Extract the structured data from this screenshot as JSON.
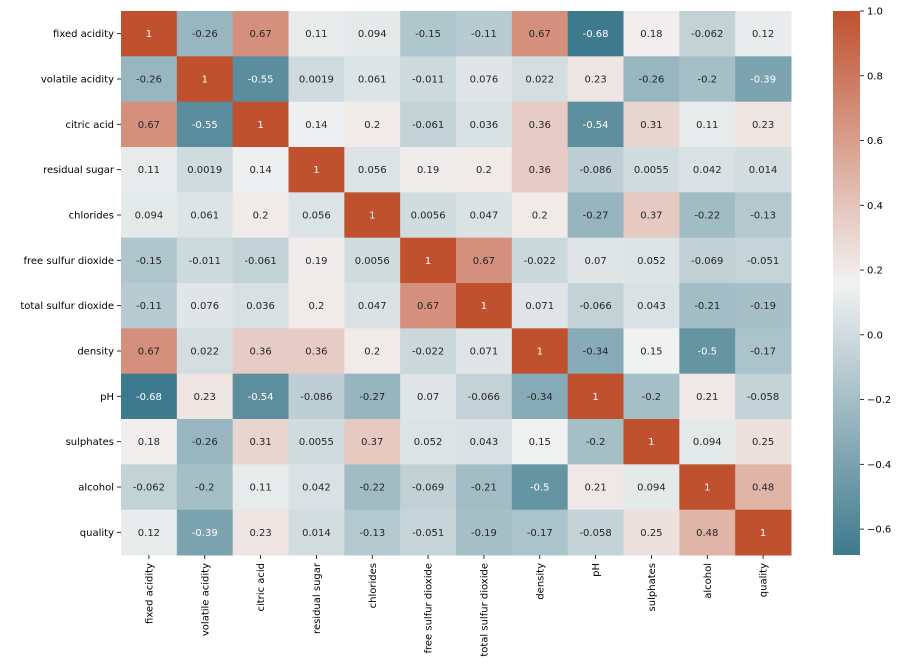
{
  "chart_data": {
    "type": "heatmap",
    "title": "",
    "xlabel": "",
    "ylabel": "",
    "labels": [
      "fixed acidity",
      "volatile acidity",
      "citric acid",
      "residual sugar",
      "chlorides",
      "free sulfur dioxide",
      "total sulfur dioxide",
      "density",
      "pH",
      "sulphates",
      "alcohol",
      "quality"
    ],
    "matrix": [
      [
        "1",
        "-0.26",
        "0.67",
        "0.11",
        "0.094",
        "-0.15",
        "-0.11",
        "0.67",
        "-0.68",
        "0.18",
        "-0.062",
        "0.12"
      ],
      [
        "-0.26",
        "1",
        "-0.55",
        "0.0019",
        "0.061",
        "-0.011",
        "0.076",
        "0.022",
        "0.23",
        "-0.26",
        "-0.2",
        "-0.39"
      ],
      [
        "0.67",
        "-0.55",
        "1",
        "0.14",
        "0.2",
        "-0.061",
        "0.036",
        "0.36",
        "-0.54",
        "0.31",
        "0.11",
        "0.23"
      ],
      [
        "0.11",
        "0.0019",
        "0.14",
        "1",
        "0.056",
        "0.19",
        "0.2",
        "0.36",
        "-0.086",
        "0.0055",
        "0.042",
        "0.014"
      ],
      [
        "0.094",
        "0.061",
        "0.2",
        "0.056",
        "1",
        "0.0056",
        "0.047",
        "0.2",
        "-0.27",
        "0.37",
        "-0.22",
        "-0.13"
      ],
      [
        "-0.15",
        "-0.011",
        "-0.061",
        "0.19",
        "0.0056",
        "1",
        "0.67",
        "-0.022",
        "0.07",
        "0.052",
        "-0.069",
        "-0.051"
      ],
      [
        "-0.11",
        "0.076",
        "0.036",
        "0.2",
        "0.047",
        "0.67",
        "1",
        "0.071",
        "-0.066",
        "0.043",
        "-0.21",
        "-0.19"
      ],
      [
        "0.67",
        "0.022",
        "0.36",
        "0.36",
        "0.2",
        "-0.022",
        "0.071",
        "1",
        "-0.34",
        "0.15",
        "-0.5",
        "-0.17"
      ],
      [
        "-0.68",
        "0.23",
        "-0.54",
        "-0.086",
        "-0.27",
        "0.07",
        "-0.066",
        "-0.34",
        "1",
        "-0.2",
        "0.21",
        "-0.058"
      ],
      [
        "0.18",
        "-0.26",
        "0.31",
        "0.0055",
        "0.37",
        "0.052",
        "0.043",
        "0.15",
        "-0.2",
        "1",
        "0.094",
        "0.25"
      ],
      [
        "-0.062",
        "-0.2",
        "0.11",
        "0.042",
        "-0.22",
        "-0.069",
        "-0.21",
        "-0.5",
        "0.21",
        "0.094",
        "1",
        "0.48"
      ],
      [
        "0.12",
        "-0.39",
        "0.23",
        "0.014",
        "-0.13",
        "-0.051",
        "-0.19",
        "-0.17",
        "-0.058",
        "0.25",
        "0.48",
        "1"
      ]
    ],
    "vmin": -0.68,
    "vmax": 1.0,
    "colormap": {
      "low": "#3e7a8d",
      "mid": "#f2f2f2",
      "high": "#c0512f",
      "center": 0.16
    },
    "colorbar_ticks": [
      {
        "value": 1.0,
        "label": "1.0"
      },
      {
        "value": 0.8,
        "label": "0.8"
      },
      {
        "value": 0.6,
        "label": "0.6"
      },
      {
        "value": 0.4,
        "label": "0.4"
      },
      {
        "value": 0.2,
        "label": "0.2"
      },
      {
        "value": 0.0,
        "label": "0.0"
      },
      {
        "value": -0.2,
        "label": "−0.2"
      },
      {
        "value": -0.4,
        "label": "−0.4"
      },
      {
        "value": -0.6,
        "label": "−0.6"
      }
    ],
    "annot_dark_text": "#262626",
    "annot_light_text": "#ffffff"
  }
}
